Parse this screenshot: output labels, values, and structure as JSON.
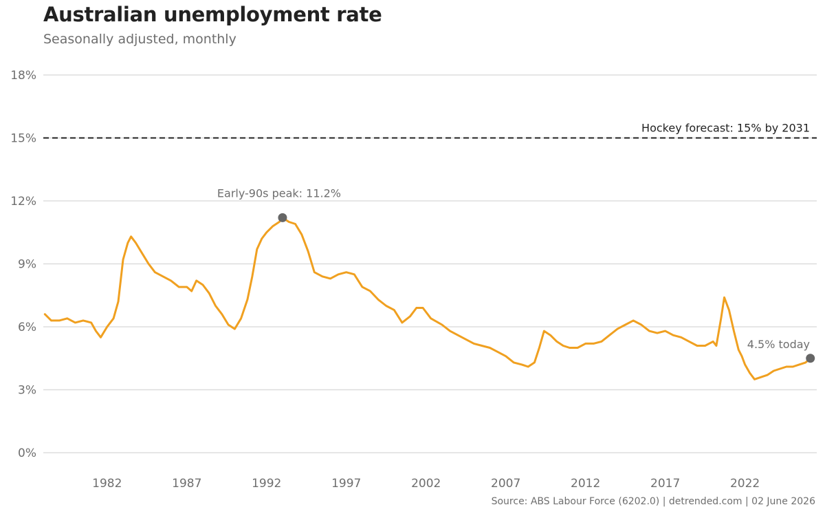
{
  "title": "Australian unemployment rate",
  "subtitle": "Seasonally adjusted, monthly",
  "caption": "Source: ABS Labour Force (6202.0) | detrended.com | 02 June 2026",
  "colors": {
    "line": "#f0a020",
    "dot": "#666666",
    "grid": "#dddddd",
    "text": "#6e6e6e",
    "reference": "#222222"
  },
  "chart_data": {
    "type": "line",
    "title": "Australian unemployment rate",
    "subtitle": "Seasonally adjusted, monthly",
    "xlim": [
      1978.0,
      2026.5
    ],
    "ylim": [
      0,
      18
    ],
    "x_ticks": [
      1982,
      1987,
      1992,
      1997,
      2002,
      2007,
      2012,
      2017,
      2022
    ],
    "y_ticks": [
      0,
      3,
      6,
      9,
      12,
      15,
      18
    ],
    "y_tick_labels": [
      "0%",
      "3%",
      "6%",
      "9%",
      "12%",
      "15%",
      "18%"
    ],
    "grid": "horizontal",
    "series": [
      {
        "x": [
          1978.1,
          1978.5,
          1979.0,
          1979.5,
          1980.0,
          1980.5,
          1981.0,
          1981.3,
          1981.6,
          1982.0,
          1982.4,
          1982.7,
          1983.0,
          1983.3,
          1983.5,
          1983.8,
          1984.2,
          1984.6,
          1985.0,
          1985.5,
          1986.0,
          1986.5,
          1987.0,
          1987.3,
          1987.6,
          1988.0,
          1988.4,
          1988.8,
          1989.2,
          1989.6,
          1990.0,
          1990.4,
          1990.8,
          1991.1,
          1991.4,
          1991.7,
          1992.0,
          1992.4,
          1992.8,
          1993.0,
          1993.4,
          1993.8,
          1994.2,
          1994.6,
          1995.0,
          1995.5,
          1996.0,
          1996.5,
          1997.0,
          1997.5,
          1998.0,
          1998.5,
          1999.0,
          1999.5,
          2000.0,
          2000.5,
          2001.0,
          2001.4,
          2001.8,
          2002.3,
          2003.0,
          2003.5,
          2004.0,
          2004.5,
          2005.0,
          2005.5,
          2006.0,
          2006.5,
          2007.0,
          2007.5,
          2008.0,
          2008.4,
          2008.8,
          2009.1,
          2009.4,
          2009.8,
          2010.2,
          2010.6,
          2011.0,
          2011.5,
          2012.0,
          2012.5,
          2013.0,
          2013.5,
          2014.0,
          2014.5,
          2015.0,
          2015.5,
          2016.0,
          2016.5,
          2017.0,
          2017.5,
          2018.0,
          2018.5,
          2019.0,
          2019.5,
          2020.0,
          2020.2,
          2020.5,
          2020.7,
          2021.0,
          2021.3,
          2021.6,
          2021.8,
          2022.0,
          2022.3,
          2022.6,
          2023.0,
          2023.4,
          2023.8,
          2024.2,
          2024.6,
          2025.0,
          2025.4,
          2025.8,
          2026.1
        ],
        "y": [
          6.6,
          6.3,
          6.3,
          6.4,
          6.2,
          6.3,
          6.2,
          5.8,
          5.5,
          6.0,
          6.4,
          7.2,
          9.2,
          10.0,
          10.3,
          10.0,
          9.5,
          9.0,
          8.6,
          8.4,
          8.2,
          7.9,
          7.9,
          7.7,
          8.2,
          8.0,
          7.6,
          7.0,
          6.6,
          6.1,
          5.9,
          6.4,
          7.3,
          8.4,
          9.7,
          10.2,
          10.5,
          10.8,
          11.0,
          11.2,
          11.0,
          10.9,
          10.4,
          9.6,
          8.6,
          8.4,
          8.3,
          8.5,
          8.6,
          8.5,
          7.9,
          7.7,
          7.3,
          7.0,
          6.8,
          6.2,
          6.5,
          6.9,
          6.9,
          6.4,
          6.1,
          5.8,
          5.6,
          5.4,
          5.2,
          5.1,
          5.0,
          4.8,
          4.6,
          4.3,
          4.2,
          4.1,
          4.3,
          5.0,
          5.8,
          5.6,
          5.3,
          5.1,
          5.0,
          5.0,
          5.2,
          5.2,
          5.3,
          5.6,
          5.9,
          6.1,
          6.3,
          6.1,
          5.8,
          5.7,
          5.8,
          5.6,
          5.5,
          5.3,
          5.1,
          5.1,
          5.3,
          5.1,
          6.4,
          7.4,
          6.8,
          5.8,
          4.9,
          4.6,
          4.2,
          3.8,
          3.5,
          3.6,
          3.7,
          3.9,
          4.0,
          4.1,
          4.1,
          4.2,
          4.3,
          4.5
        ]
      }
    ],
    "reference_line": {
      "y": 15,
      "label": "Hockey forecast: 15% by 2031"
    },
    "annotations": [
      {
        "x": 1993.0,
        "y": 11.2,
        "label": "Early-90s peak: 11.2%"
      },
      {
        "x": 2026.1,
        "y": 4.5,
        "label": "4.5% today"
      }
    ]
  }
}
